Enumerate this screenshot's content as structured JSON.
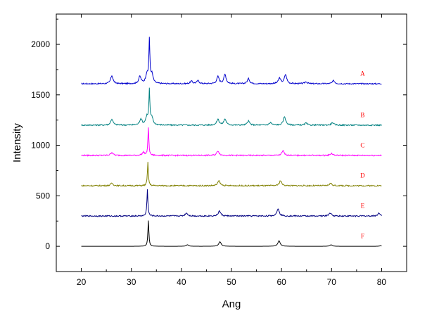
{
  "chart_data": {
    "type": "line",
    "xlabel": "Ang",
    "ylabel": "Intensity",
    "xlim": [
      15,
      85
    ],
    "ylim": [
      -250,
      2300
    ],
    "xticks": [
      20,
      30,
      40,
      50,
      60,
      70,
      80
    ],
    "yticks": [
      0,
      500,
      1000,
      1500,
      2000
    ],
    "grid": false,
    "legend": "inline labels at right end of each trace",
    "series": [
      {
        "name": "A",
        "color": "#0000cc",
        "baseline": 1610,
        "peaks": [
          [
            26.1,
            1690
          ],
          [
            31.7,
            1680
          ],
          [
            33.1,
            1700
          ],
          [
            33.6,
            2030
          ],
          [
            34.1,
            1700
          ],
          [
            42.0,
            1635
          ],
          [
            43.3,
            1640
          ],
          [
            47.3,
            1680
          ],
          [
            48.7,
            1700
          ],
          [
            53.4,
            1660
          ],
          [
            59.6,
            1665
          ],
          [
            60.8,
            1700
          ],
          [
            64.9,
            1630
          ],
          [
            70.4,
            1640
          ]
        ]
      },
      {
        "name": "B",
        "color": "#008080",
        "baseline": 1200,
        "peaks": [
          [
            26.1,
            1260
          ],
          [
            31.9,
            1260
          ],
          [
            33.1,
            1280
          ],
          [
            33.6,
            1530
          ],
          [
            34.1,
            1270
          ],
          [
            47.3,
            1260
          ],
          [
            48.7,
            1260
          ],
          [
            53.4,
            1240
          ],
          [
            57.8,
            1225
          ],
          [
            60.6,
            1285
          ],
          [
            64.9,
            1220
          ],
          [
            70.2,
            1225
          ]
        ]
      },
      {
        "name": "C",
        "color": "#ff00ff",
        "baseline": 900,
        "peaks": [
          [
            26.1,
            930
          ],
          [
            32.4,
            930
          ],
          [
            33.4,
            1170
          ],
          [
            47.3,
            945
          ],
          [
            60.3,
            945
          ],
          [
            70.0,
            920
          ]
        ]
      },
      {
        "name": "D",
        "color": "#808000",
        "baseline": 600,
        "peaks": [
          [
            26.1,
            625
          ],
          [
            33.3,
            830
          ],
          [
            47.5,
            650
          ],
          [
            59.8,
            650
          ],
          [
            69.8,
            625
          ]
        ]
      },
      {
        "name": "E",
        "color": "#000080",
        "baseline": 300,
        "peaks": [
          [
            33.2,
            560
          ],
          [
            41.0,
            330
          ],
          [
            47.6,
            350
          ],
          [
            59.3,
            375
          ],
          [
            69.7,
            330
          ],
          [
            79.5,
            330
          ]
        ]
      },
      {
        "name": "F",
        "color": "#000000",
        "baseline": 0,
        "peaks": [
          [
            33.4,
            255
          ],
          [
            41.2,
            15
          ],
          [
            47.7,
            45
          ],
          [
            59.5,
            55
          ],
          [
            69.9,
            15
          ],
          [
            79.8,
            5
          ]
        ]
      }
    ]
  }
}
